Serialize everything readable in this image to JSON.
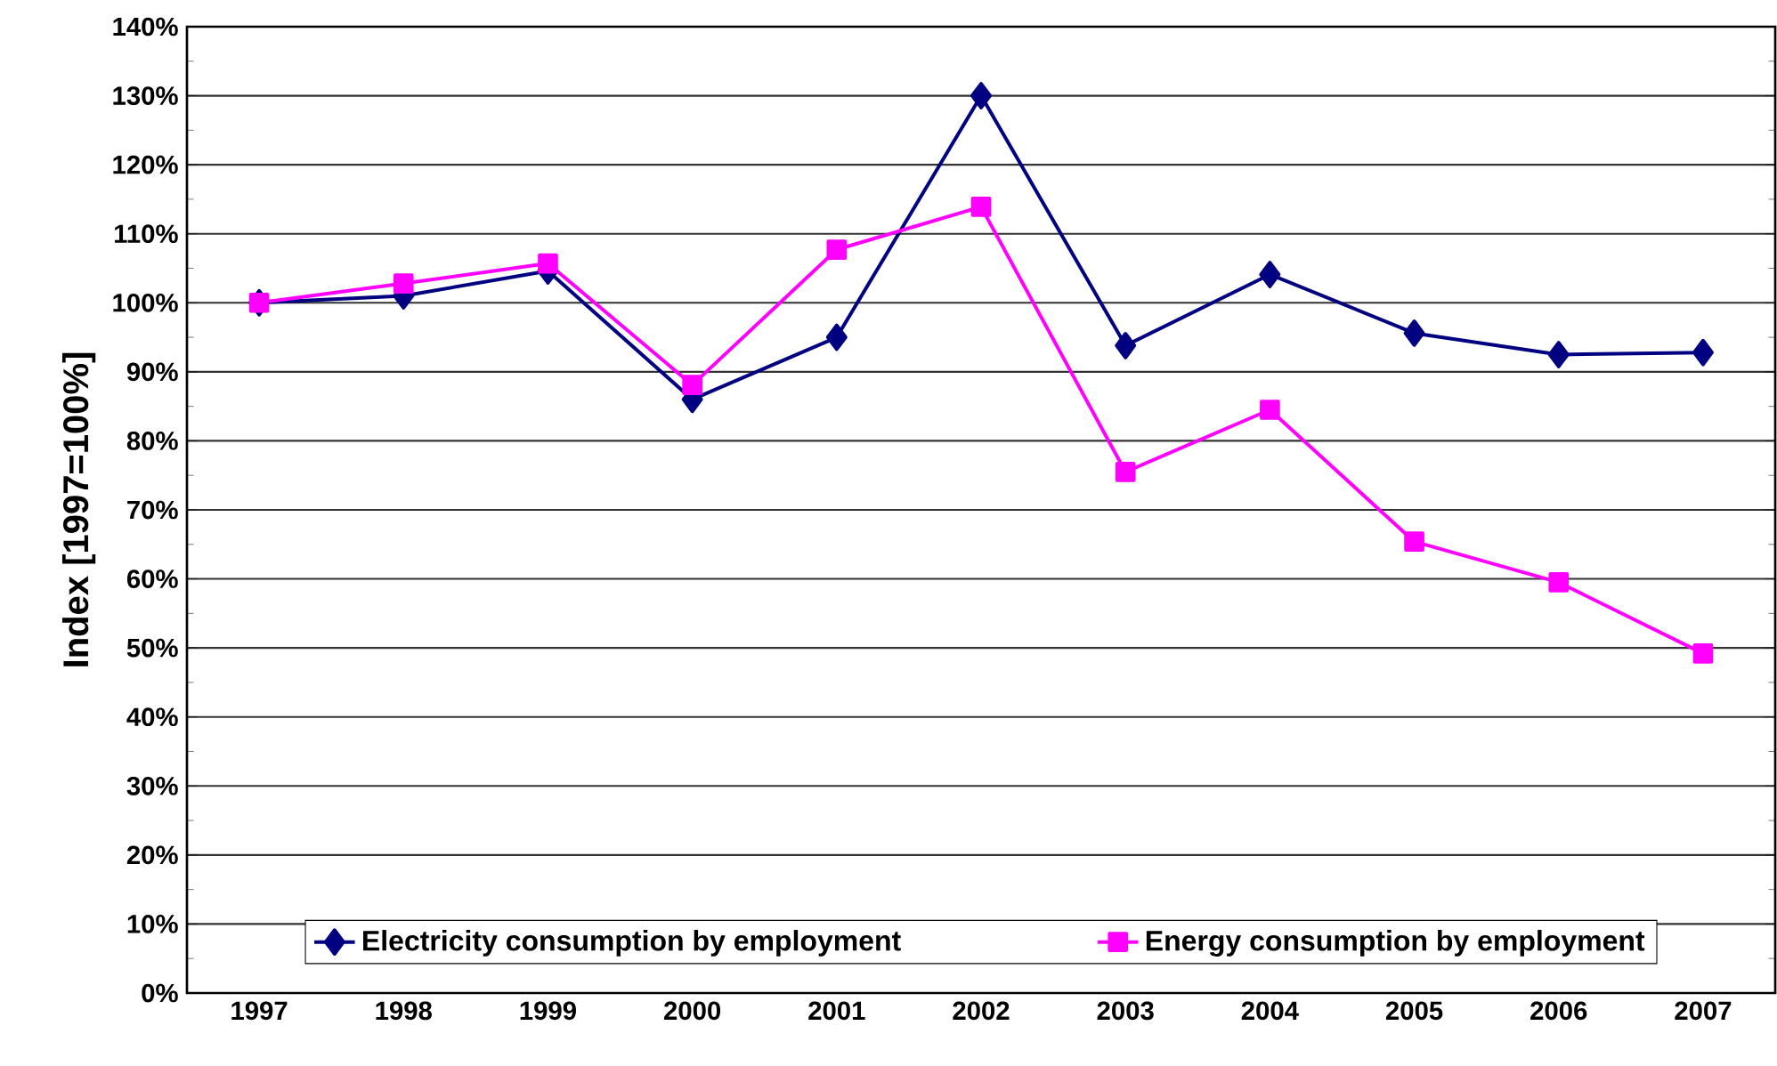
{
  "chart_data": {
    "type": "line",
    "ylabel": "Index [1997=100%]",
    "categories": [
      "1997",
      "1998",
      "1999",
      "2000",
      "2001",
      "2002",
      "2003",
      "2004",
      "2005",
      "2006",
      "2007"
    ],
    "series": [
      {
        "name": "Electricity consumption by employment",
        "color": "#000080",
        "marker": "diamond",
        "values": [
          100,
          101,
          104.6,
          86,
          95,
          130,
          93.8,
          104.1,
          95.6,
          92.5,
          92.8
        ]
      },
      {
        "name": "Energy consumption by employment",
        "color": "#ff00ff",
        "marker": "square",
        "values": [
          100,
          102.8,
          105.7,
          88.1,
          107.7,
          113.9,
          75.5,
          84.5,
          65.4,
          59.5,
          49.2
        ]
      }
    ],
    "ylim": [
      0,
      140
    ],
    "yticks": [
      {
        "value": 0,
        "label": "0%"
      },
      {
        "value": 10,
        "label": "10%"
      },
      {
        "value": 20,
        "label": "20%"
      },
      {
        "value": 30,
        "label": "30%"
      },
      {
        "value": 40,
        "label": "40%"
      },
      {
        "value": 50,
        "label": "50%"
      },
      {
        "value": 60,
        "label": "60%"
      },
      {
        "value": 70,
        "label": "70%"
      },
      {
        "value": 80,
        "label": "80%"
      },
      {
        "value": 90,
        "label": "90%"
      },
      {
        "value": 100,
        "label": "100%"
      },
      {
        "value": 110,
        "label": "110%"
      },
      {
        "value": 120,
        "label": "120%"
      },
      {
        "value": 130,
        "label": "130%"
      },
      {
        "value": 140,
        "label": "140%"
      }
    ],
    "grid": "y",
    "legend": "bottom",
    "line_style": "solid"
  }
}
